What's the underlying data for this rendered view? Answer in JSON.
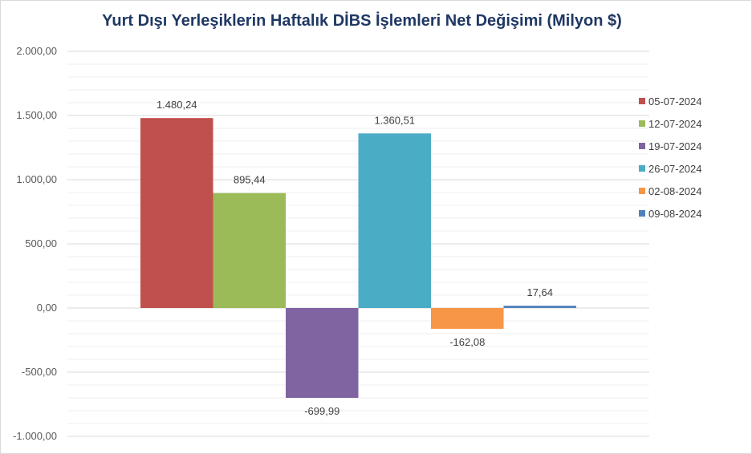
{
  "chart_data": {
    "type": "bar",
    "title": "Yurt Dışı Yerleşiklerin Haftalık DİBS İşlemleri Net Değişimi (Milyon $)",
    "ylim": [
      -1000,
      2000
    ],
    "yticks": [
      2000,
      1500,
      1000,
      500,
      0,
      -500,
      -1000
    ],
    "ytick_labels": [
      "2.000,00",
      "1.500,00",
      "1.000,00",
      "500,00",
      "0,00",
      "-500,00",
      "-1.000,00"
    ],
    "grid": true,
    "legend_position": "right",
    "series": [
      {
        "name": "05-07-2024",
        "value": 1480.24,
        "label": "1.480,24",
        "color": "#c0504d"
      },
      {
        "name": "12-07-2024",
        "value": 895.44,
        "label": "895,44",
        "color": "#9bbb59"
      },
      {
        "name": "19-07-2024",
        "value": -699.99,
        "label": "-699,99",
        "color": "#8064a2"
      },
      {
        "name": "26-07-2024",
        "value": 1360.51,
        "label": "1.360,51",
        "color": "#4bacc6"
      },
      {
        "name": "02-08-2024",
        "value": -162.08,
        "label": "-162,08",
        "color": "#f79646"
      },
      {
        "name": "09-08-2024",
        "value": 17.64,
        "label": "17,64",
        "color": "#4f81bd"
      }
    ]
  }
}
